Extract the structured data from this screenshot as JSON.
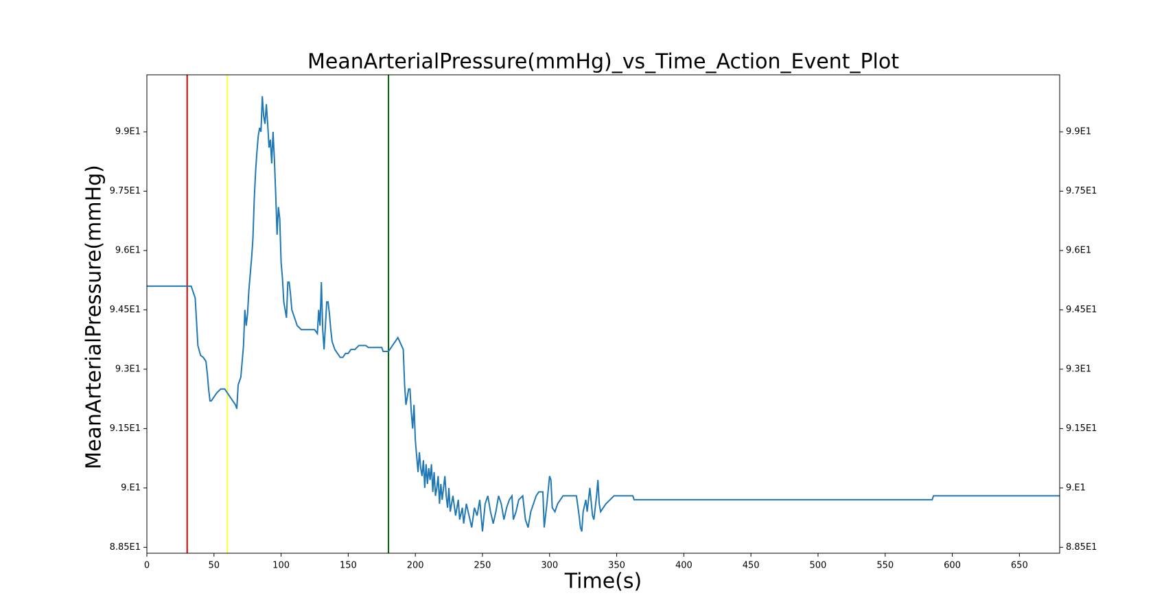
{
  "chart_data": {
    "type": "line",
    "title": "MeanArterialPressure(mmHg)_vs_Time_Action_Event_Plot",
    "xlabel": "Time(s)",
    "ylabel": "MeanArterialPressure(mmHg)",
    "xlim": [
      0,
      680
    ],
    "ylim": [
      88.35,
      100.44
    ],
    "xticks": [
      0,
      50,
      100,
      150,
      200,
      250,
      300,
      350,
      400,
      450,
      500,
      550,
      600,
      650
    ],
    "yticks": [
      {
        "value": 88.5,
        "label": "8.85E1"
      },
      {
        "value": 90,
        "label": "9.E1"
      },
      {
        "value": 91.5,
        "label": "9.15E1"
      },
      {
        "value": 93,
        "label": "9.3E1"
      },
      {
        "value": 94.5,
        "label": "9.45E1"
      },
      {
        "value": 96,
        "label": "9.6E1"
      },
      {
        "value": 97.5,
        "label": "9.75E1"
      },
      {
        "value": 99,
        "label": "9.9E1"
      }
    ],
    "event_lines": [
      {
        "x": 30,
        "color": "#c00000"
      },
      {
        "x": 60,
        "color": "#ffff33"
      },
      {
        "x": 180,
        "color": "#006400"
      }
    ],
    "x": [
      0,
      33,
      34,
      36,
      37,
      38,
      40,
      42,
      44,
      45,
      46,
      47,
      48,
      50,
      52,
      55,
      58,
      60,
      62,
      64,
      66,
      67,
      68,
      70,
      71,
      72,
      73,
      74,
      75,
      76,
      77,
      78,
      79,
      80,
      81,
      82,
      83,
      84,
      85,
      86,
      87,
      88,
      89,
      90,
      91,
      92,
      93,
      94,
      95,
      96,
      97,
      98,
      99,
      100,
      101,
      102,
      103,
      104,
      105,
      106,
      107,
      108,
      110,
      112,
      115,
      120,
      125,
      127,
      128,
      129,
      130,
      131,
      132,
      134,
      135,
      136,
      137,
      138,
      140,
      142,
      144,
      146,
      148,
      150,
      152,
      155,
      158,
      163,
      165,
      175,
      176,
      180,
      183,
      185,
      187,
      189,
      191,
      192,
      193,
      194,
      195,
      196,
      197,
      198,
      199,
      200,
      201,
      202,
      203,
      204,
      205,
      206,
      207,
      208,
      209,
      210,
      211,
      212,
      213,
      214,
      215,
      216,
      217,
      218,
      219,
      220,
      222,
      223,
      224,
      225,
      226,
      228,
      230,
      232,
      233,
      235,
      236,
      238,
      240,
      242,
      244,
      246,
      248,
      250,
      252,
      254,
      256,
      258,
      260,
      262,
      264,
      266,
      268,
      270,
      272,
      273,
      275,
      277,
      280,
      282,
      284,
      286,
      288,
      290,
      292,
      295,
      296,
      298,
      300,
      301,
      302,
      304,
      306,
      308,
      310,
      312,
      315,
      320,
      322,
      323,
      324,
      325,
      327,
      328,
      330,
      332,
      333,
      335,
      336,
      337,
      338,
      340,
      342,
      345,
      348,
      355,
      362,
      363,
      585,
      586,
      680
    ],
    "series": [
      {
        "color": "#1f77b4",
        "values": [
          95.1,
          95.1,
          95.0,
          94.8,
          94.2,
          93.6,
          93.35,
          93.3,
          93.2,
          92.9,
          92.5,
          92.2,
          92.2,
          92.3,
          92.4,
          92.5,
          92.5,
          92.4,
          92.3,
          92.2,
          92.1,
          92.0,
          92.6,
          92.8,
          93.2,
          93.6,
          94.5,
          94.1,
          94.4,
          95.0,
          95.4,
          95.8,
          96.3,
          97.3,
          98.0,
          98.5,
          98.9,
          99.1,
          99.0,
          99.9,
          99.4,
          99.2,
          99.7,
          99.2,
          98.6,
          98.8,
          98.2,
          99.0,
          98.3,
          97.4,
          96.4,
          97.1,
          96.8,
          95.7,
          95.3,
          94.7,
          94.5,
          94.3,
          95.2,
          95.2,
          94.9,
          94.5,
          94.3,
          94.1,
          94.0,
          94.0,
          94.0,
          93.9,
          94.5,
          94.1,
          95.2,
          94.0,
          93.5,
          94.7,
          94.7,
          94.4,
          94.0,
          93.7,
          93.5,
          93.4,
          93.3,
          93.3,
          93.4,
          93.4,
          93.5,
          93.5,
          93.6,
          93.6,
          93.55,
          93.55,
          93.45,
          93.45,
          93.6,
          93.7,
          93.8,
          93.65,
          93.5,
          92.6,
          92.1,
          92.3,
          92.5,
          92.5,
          91.9,
          91.5,
          92.1,
          91.2,
          90.8,
          90.4,
          90.9,
          90.5,
          90.3,
          90.7,
          90.0,
          90.6,
          90.1,
          90.5,
          90.2,
          90.6,
          89.9,
          90.4,
          89.8,
          90.0,
          90.3,
          89.6,
          90.1,
          89.7,
          90.3,
          89.8,
          89.5,
          90.0,
          89.4,
          89.8,
          89.3,
          89.7,
          89.2,
          89.5,
          89.1,
          89.6,
          89.3,
          89.0,
          89.5,
          89.3,
          89.7,
          88.9,
          89.6,
          89.8,
          89.4,
          89.1,
          89.4,
          89.8,
          89.6,
          89.2,
          89.5,
          89.7,
          89.8,
          89.2,
          89.4,
          89.7,
          89.8,
          89.2,
          89.0,
          89.4,
          89.6,
          89.8,
          89.9,
          89.9,
          89.0,
          89.6,
          90.3,
          90.2,
          89.5,
          89.4,
          89.6,
          89.7,
          89.8,
          89.8,
          89.8,
          89.8,
          89.3,
          89.0,
          88.9,
          89.4,
          89.7,
          89.4,
          90.0,
          89.3,
          89.2,
          89.8,
          90.2,
          89.6,
          89.4,
          89.5,
          89.6,
          89.7,
          89.8,
          89.8,
          89.8,
          89.7,
          89.7,
          89.8,
          89.8
        ]
      }
    ]
  }
}
